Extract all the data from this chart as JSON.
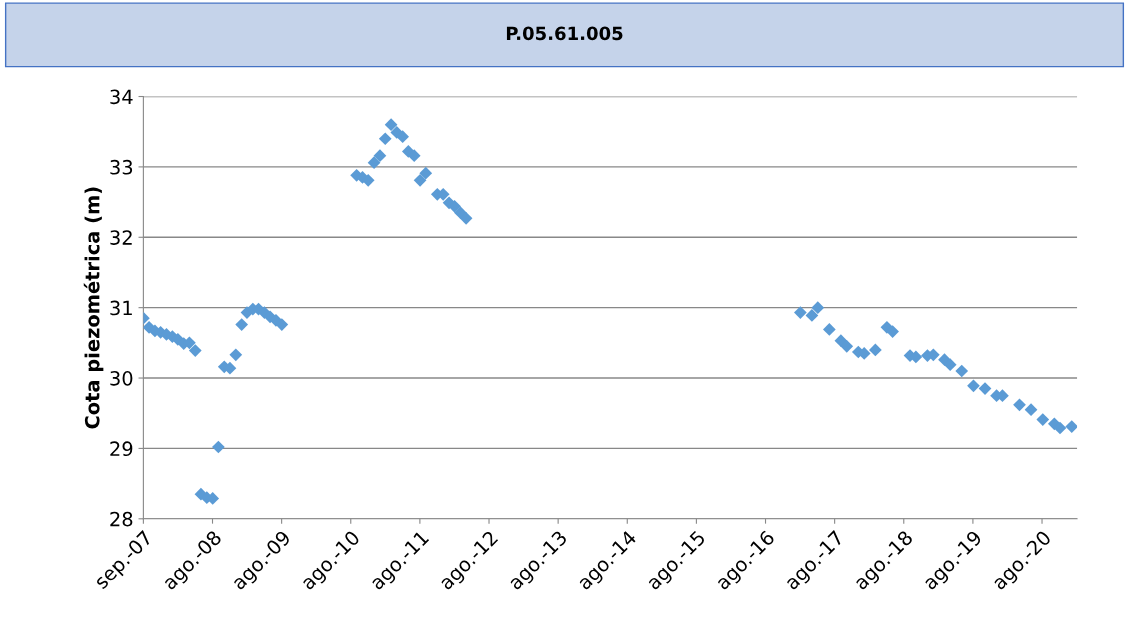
{
  "chart_data": {
    "type": "scatter",
    "title": "P.05.61.005",
    "ylabel": "Cota piezométrica (m)",
    "marker": "diamond",
    "grid": "y",
    "legend": false,
    "x": [
      "2007-09",
      "2007-10",
      "2007-11",
      "2007-12",
      "2008-01",
      "2008-02",
      "2008-03",
      "2008-04",
      "2008-05",
      "2008-06",
      "2008-07",
      "2008-08",
      "2008-09",
      "2008-10",
      "2008-11",
      "2008-12",
      "2009-01",
      "2009-02",
      "2009-03",
      "2009-04",
      "2009-05",
      "2009-06",
      "2009-07",
      "2009-08",
      "2009-09",
      "2010-10",
      "2010-11",
      "2010-12",
      "2011-01",
      "2011-02",
      "2011-03",
      "2011-04",
      "2011-05",
      "2011-06",
      "2011-07",
      "2011-08",
      "2011-09",
      "2011-10",
      "2011-12",
      "2012-01",
      "2012-02",
      "2012-03",
      "2012-04",
      "2012-05",
      "2017-03",
      "2017-05",
      "2017-06",
      "2017-08",
      "2017-10",
      "2017-11",
      "2018-01",
      "2018-02",
      "2018-04",
      "2018-06",
      "2018-07",
      "2018-10",
      "2018-11",
      "2019-01",
      "2019-02",
      "2019-04",
      "2019-05",
      "2019-07",
      "2019-09",
      "2019-11",
      "2020-01",
      "2020-02",
      "2020-05",
      "2020-07",
      "2020-09",
      "2020-11",
      "2020-12",
      "2021-02"
    ],
    "series": [
      {
        "color": "#5b9bd5",
        "values": [
          30.85,
          30.72,
          30.67,
          30.65,
          30.62,
          30.59,
          30.55,
          30.49,
          30.5,
          30.39,
          28.35,
          28.3,
          28.29,
          29.02,
          30.16,
          30.14,
          30.33,
          30.76,
          30.93,
          30.98,
          30.98,
          30.93,
          30.87,
          30.82,
          30.76,
          32.88,
          32.85,
          32.81,
          33.06,
          33.16,
          33.4,
          33.6,
          33.49,
          33.43,
          33.22,
          33.16,
          32.81,
          32.91,
          32.61,
          32.61,
          32.49,
          32.44,
          32.35,
          32.27,
          30.93,
          30.89,
          31.0,
          30.69,
          30.53,
          30.45,
          30.37,
          30.35,
          30.4,
          30.72,
          30.66,
          30.32,
          30.3,
          30.32,
          30.33,
          30.26,
          30.19,
          30.1,
          29.89,
          29.85,
          29.75,
          29.75,
          29.62,
          29.55,
          29.41,
          29.35,
          29.29,
          29.31
        ]
      }
    ],
    "ylim": [
      28,
      34
    ],
    "yticks": [
      28,
      29,
      30,
      31,
      32,
      33,
      34
    ],
    "xlim": [
      "2007-09-01",
      "2021-03-01"
    ],
    "xticks": [
      {
        "value": "2007-09-01",
        "label": "sep.-07"
      },
      {
        "value": "2008-08-31",
        "label": "ago.-08"
      },
      {
        "value": "2009-08-31",
        "label": "ago.-09"
      },
      {
        "value": "2010-08-31",
        "label": "ago.-10"
      },
      {
        "value": "2011-08-31",
        "label": "ago.-11"
      },
      {
        "value": "2012-08-30",
        "label": "ago.-12"
      },
      {
        "value": "2013-08-30",
        "label": "ago.-13"
      },
      {
        "value": "2014-08-30",
        "label": "ago.-14"
      },
      {
        "value": "2015-08-30",
        "label": "ago.-15"
      },
      {
        "value": "2016-08-29",
        "label": "ago.-16"
      },
      {
        "value": "2017-08-29",
        "label": "ago.-17"
      },
      {
        "value": "2018-08-29",
        "label": "ago.-18"
      },
      {
        "value": "2019-08-29",
        "label": "ago.-19"
      },
      {
        "value": "2020-08-28",
        "label": "ago.-20"
      }
    ]
  }
}
